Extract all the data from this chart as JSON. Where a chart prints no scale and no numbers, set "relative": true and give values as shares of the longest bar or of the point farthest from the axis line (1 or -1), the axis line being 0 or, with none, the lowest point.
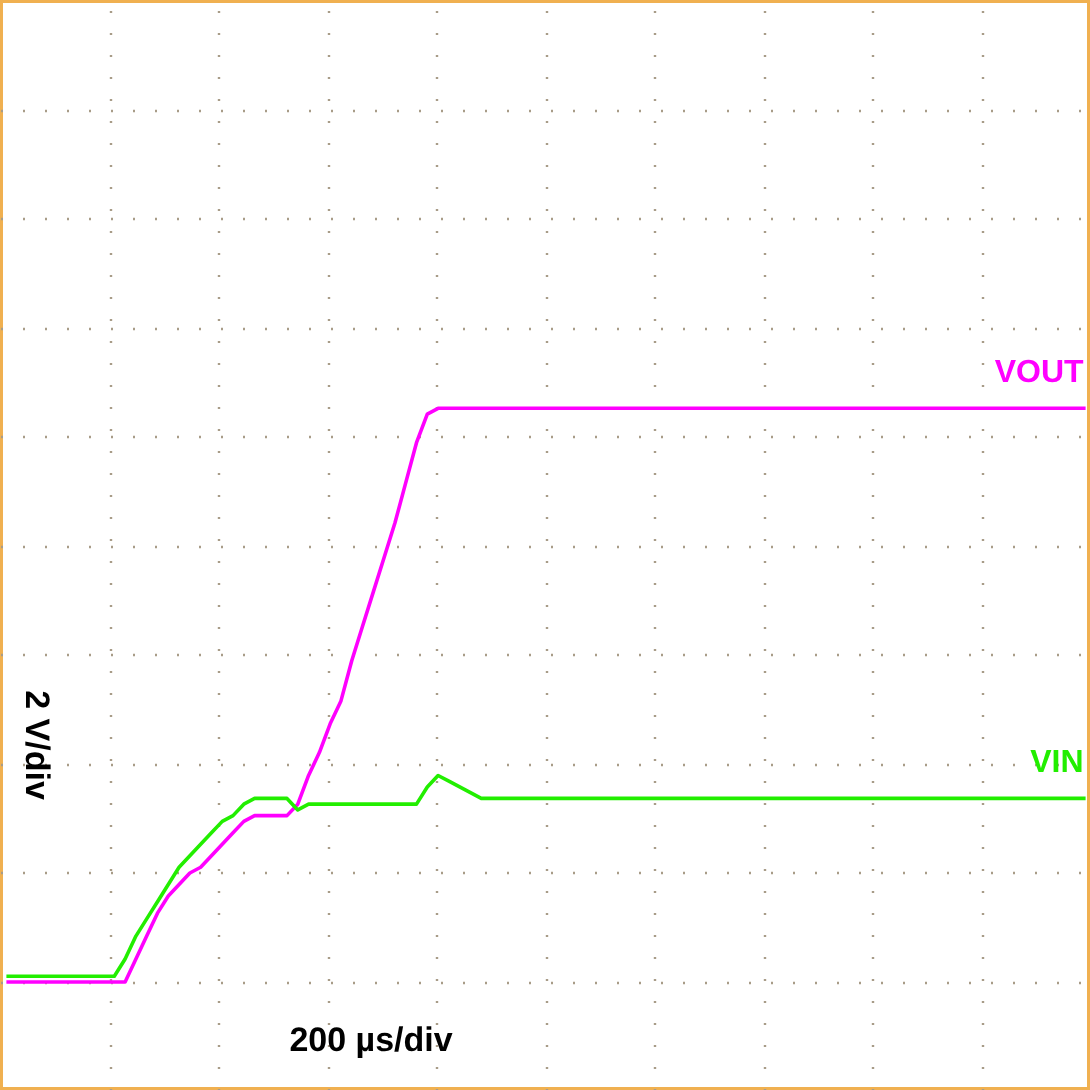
{
  "chart_data": {
    "type": "line",
    "relative": true,
    "grid": true,
    "xlabel": "200 µs/div",
    "ylabel": "2 V/div",
    "categories": [
      null,
      null,
      null,
      null,
      null,
      null,
      null,
      null,
      null,
      null,
      null,
      null,
      null,
      null,
      null,
      null,
      null,
      null,
      null,
      null,
      null,
      null,
      null,
      null,
      null,
      null,
      null,
      null,
      null,
      null,
      null,
      null,
      null,
      null,
      null,
      null,
      null,
      null,
      null,
      null,
      null,
      null,
      null,
      null,
      null,
      null,
      null,
      null,
      null,
      null,
      null,
      null,
      null,
      null,
      null,
      null,
      null,
      null,
      null,
      null,
      null,
      null,
      null,
      null,
      null,
      null,
      null,
      null,
      null,
      null,
      null,
      null,
      null,
      null,
      null,
      null,
      null,
      null,
      null,
      null,
      null,
      null,
      null,
      null,
      null,
      null,
      null,
      null,
      null,
      null,
      null,
      null,
      null,
      null,
      null,
      null,
      null,
      null,
      null,
      null,
      null
    ],
    "series": [
      {
        "name": "VOUT",
        "color": "#ff00ff",
        "values": [
          0,
          0,
          0,
          0,
          0,
          0,
          0,
          0,
          0,
          0,
          0,
          0,
          0.04,
          0.08,
          0.12,
          0.15,
          0.17,
          0.19,
          0.2,
          0.22,
          0.24,
          0.26,
          0.28,
          0.29,
          0.29,
          0.29,
          0.29,
          0.31,
          0.36,
          0.4,
          0.45,
          0.49,
          0.56,
          0.62,
          0.68,
          0.74,
          0.8,
          0.87,
          0.94,
          0.99,
          1,
          1,
          1,
          1,
          1,
          1,
          1,
          1,
          1,
          1,
          1,
          1,
          1,
          1,
          1,
          1,
          1,
          1,
          1,
          1,
          1,
          1,
          1,
          1,
          1,
          1,
          1,
          1,
          1,
          1,
          1,
          1,
          1,
          1,
          1,
          1,
          1,
          1,
          1,
          1,
          1,
          1,
          1,
          1,
          1,
          1,
          1,
          1,
          1,
          1,
          1,
          1,
          1,
          1,
          1,
          1,
          1,
          1,
          1,
          1,
          1
        ]
      },
      {
        "name": "VIN",
        "color": "#22ee00",
        "values": [
          0.01,
          0.01,
          0.01,
          0.01,
          0.01,
          0.01,
          0.01,
          0.01,
          0.01,
          0.01,
          0.01,
          0.04,
          0.08,
          0.11,
          0.14,
          0.17,
          0.2,
          0.22,
          0.24,
          0.26,
          0.28,
          0.29,
          0.31,
          0.32,
          0.32,
          0.32,
          0.32,
          0.3,
          0.31,
          0.31,
          0.31,
          0.31,
          0.31,
          0.31,
          0.31,
          0.31,
          0.31,
          0.31,
          0.31,
          0.34,
          0.36,
          0.35,
          0.34,
          0.33,
          0.32,
          0.32,
          0.32,
          0.32,
          0.32,
          0.32,
          0.32,
          0.32,
          0.32,
          0.32,
          0.32,
          0.32,
          0.32,
          0.32,
          0.32,
          0.32,
          0.32,
          0.32,
          0.32,
          0.32,
          0.32,
          0.32,
          0.32,
          0.32,
          0.32,
          0.32,
          0.32,
          0.32,
          0.32,
          0.32,
          0.32,
          0.32,
          0.32,
          0.32,
          0.32,
          0.32,
          0.32,
          0.32,
          0.32,
          0.32,
          0.32,
          0.32,
          0.32,
          0.32,
          0.32,
          0.32,
          0.32,
          0.32,
          0.32,
          0.32,
          0.32,
          0.32,
          0.32,
          0.32,
          0.32,
          0.32,
          0.32
        ]
      }
    ]
  }
}
